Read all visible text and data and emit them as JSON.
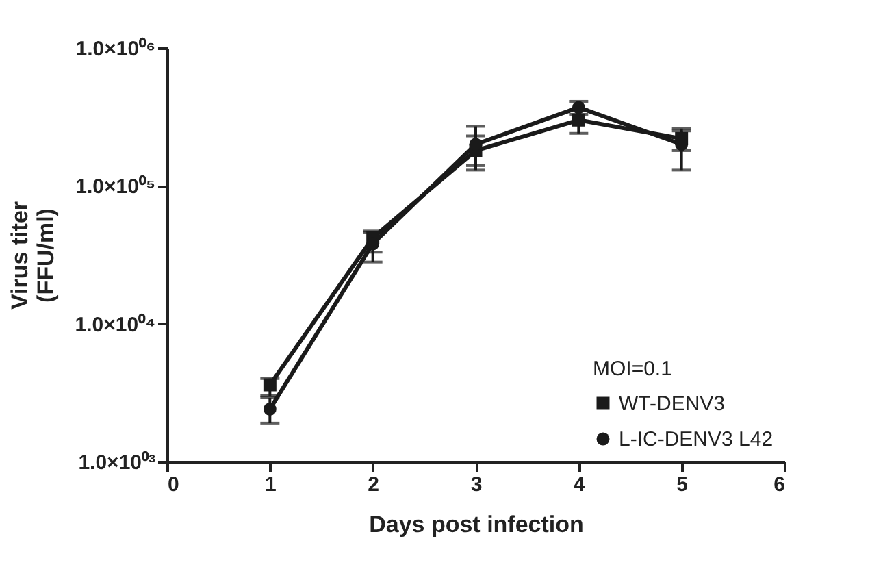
{
  "chart_data": {
    "type": "line",
    "xlabel": "Days post infection",
    "ylabel": "Virus titer\n(FFU/ml)",
    "legend_title": "MOI=0.1",
    "x": [
      1,
      2,
      3,
      4,
      5
    ],
    "series": [
      {
        "name": "WT-DENV3",
        "color": "#1a1a1a",
        "marker": "square",
        "values": [
          3600,
          42000,
          180000,
          300000,
          220000
        ],
        "errors": [
          [
            3000,
            4000
          ],
          [
            33000,
            47000
          ],
          [
            140000,
            230000
          ],
          [
            240000,
            360000
          ],
          [
            180000,
            260000
          ]
        ]
      },
      {
        "name": "L-IC-DENV3 L42",
        "color": "#1a1a1a",
        "marker": "circle",
        "values": [
          2400,
          38000,
          200000,
          370000,
          200000
        ],
        "errors": [
          [
            1900,
            2900
          ],
          [
            28000,
            46000
          ],
          [
            130000,
            270000
          ],
          [
            330000,
            410000
          ],
          [
            130000,
            250000
          ]
        ]
      }
    ],
    "log": "y",
    "xlim": [
      0,
      6
    ],
    "xticks": [
      0,
      1,
      2,
      3,
      4,
      5,
      6
    ],
    "ylim": [
      1000,
      1000000
    ],
    "yticks": [
      {
        "value": 1000,
        "label": "1.0×10⁰³"
      },
      {
        "value": 10000,
        "label": "1.0×10⁰⁴"
      },
      {
        "value": 100000,
        "label": "1.0×10⁰⁵"
      },
      {
        "value": 1000000,
        "label": "1.0×10⁰⁶"
      }
    ],
    "grid": false,
    "legend": "bottom right",
    "line_style": "solid"
  }
}
